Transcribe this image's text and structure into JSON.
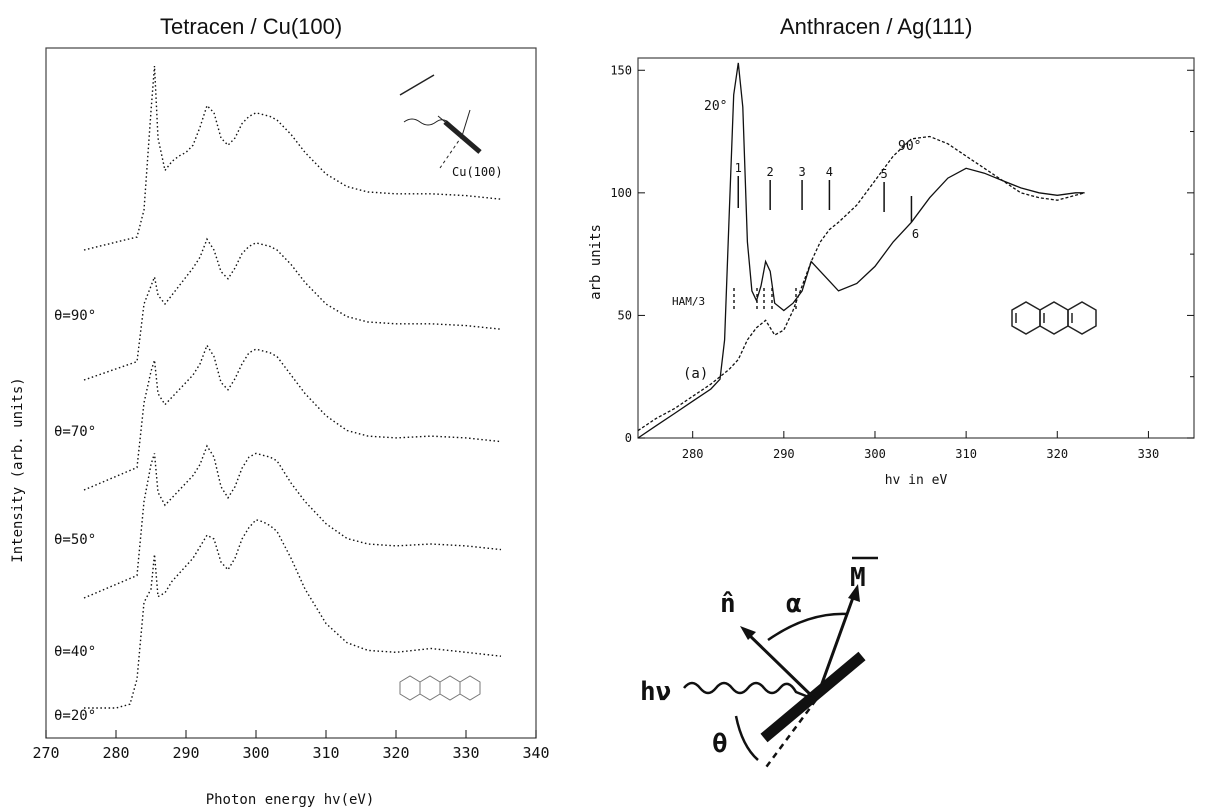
{
  "titles": {
    "left": "Tetracen / Cu(100)",
    "right": "Anthracen / Ag(111)"
  },
  "colors": {
    "ink": "#111111",
    "frame": "#444444"
  },
  "chart_data": [
    {
      "type": "line",
      "title": "Tetracen / Cu(100)",
      "xlabel": "Photon energy hv(eV)",
      "ylabel": "Intensity (arb. units)",
      "xlim": [
        270,
        340
      ],
      "xticks": [
        270,
        280,
        290,
        300,
        310,
        320,
        330,
        340
      ],
      "inset_label": "Cu(100)",
      "legend_placement": "curve labels at left",
      "grid": false,
      "series": [
        {
          "name": "θ=90°",
          "x": [
            283,
            284,
            285,
            285.5,
            286,
            287,
            288,
            289,
            290,
            291,
            292,
            293,
            294,
            295,
            296,
            297,
            298,
            299,
            300,
            301,
            302,
            303,
            305,
            307,
            310,
            313,
            316,
            320,
            325,
            330,
            335
          ],
          "y": [
            0.05,
            0.2,
            0.75,
            1.0,
            0.6,
            0.42,
            0.47,
            0.5,
            0.52,
            0.56,
            0.66,
            0.78,
            0.74,
            0.6,
            0.56,
            0.6,
            0.68,
            0.72,
            0.74,
            0.73,
            0.72,
            0.7,
            0.62,
            0.52,
            0.4,
            0.33,
            0.3,
            0.29,
            0.29,
            0.28,
            0.26
          ]
        },
        {
          "name": "θ=70°",
          "x": [
            283,
            284,
            285,
            285.5,
            286,
            287,
            288,
            289,
            290,
            291,
            292,
            293,
            294,
            295,
            296,
            297,
            298,
            299,
            300,
            301,
            302,
            303,
            305,
            307,
            310,
            313,
            316,
            320,
            325,
            330,
            335
          ],
          "y": [
            0.08,
            0.4,
            0.5,
            0.55,
            0.45,
            0.4,
            0.45,
            0.5,
            0.55,
            0.6,
            0.66,
            0.76,
            0.7,
            0.58,
            0.54,
            0.6,
            0.68,
            0.72,
            0.74,
            0.73,
            0.72,
            0.7,
            0.62,
            0.52,
            0.4,
            0.33,
            0.3,
            0.29,
            0.29,
            0.28,
            0.26
          ]
        },
        {
          "name": "θ=50°",
          "x": [
            283,
            284,
            285,
            285.5,
            286,
            287,
            288,
            289,
            290,
            291,
            292,
            293,
            294,
            295,
            296,
            297,
            298,
            299,
            300,
            301,
            302,
            303,
            305,
            307,
            310,
            313,
            316,
            320,
            325,
            330,
            335
          ],
          "y": [
            0.1,
            0.45,
            0.62,
            0.68,
            0.5,
            0.44,
            0.48,
            0.52,
            0.56,
            0.6,
            0.66,
            0.76,
            0.7,
            0.56,
            0.52,
            0.58,
            0.66,
            0.72,
            0.74,
            0.73,
            0.72,
            0.7,
            0.6,
            0.5,
            0.38,
            0.3,
            0.27,
            0.26,
            0.27,
            0.26,
            0.24
          ]
        },
        {
          "name": "θ=40°",
          "x": [
            283,
            284,
            285,
            285.5,
            286,
            287,
            288,
            289,
            290,
            291,
            292,
            293,
            294,
            295,
            296,
            297,
            298,
            299,
            300,
            301,
            302,
            303,
            305,
            307,
            310,
            313,
            316,
            320,
            325,
            330,
            335
          ],
          "y": [
            0.1,
            0.5,
            0.7,
            0.76,
            0.55,
            0.48,
            0.52,
            0.56,
            0.6,
            0.64,
            0.7,
            0.8,
            0.74,
            0.58,
            0.52,
            0.58,
            0.68,
            0.74,
            0.76,
            0.75,
            0.74,
            0.72,
            0.6,
            0.5,
            0.38,
            0.3,
            0.27,
            0.26,
            0.27,
            0.26,
            0.24
          ]
        },
        {
          "name": "θ=20°",
          "x": [
            280,
            282,
            283,
            284,
            285,
            285.5,
            286,
            287,
            288,
            289,
            290,
            291,
            292,
            293,
            294,
            295,
            296,
            297,
            298,
            299,
            300,
            301,
            302,
            303,
            305,
            307,
            310,
            313,
            316,
            320,
            325,
            330,
            335
          ],
          "y": [
            0.0,
            0.02,
            0.15,
            0.55,
            0.62,
            0.8,
            0.58,
            0.6,
            0.66,
            0.7,
            0.74,
            0.78,
            0.84,
            0.9,
            0.88,
            0.76,
            0.72,
            0.78,
            0.88,
            0.94,
            0.98,
            0.97,
            0.95,
            0.92,
            0.78,
            0.62,
            0.44,
            0.34,
            0.3,
            0.29,
            0.31,
            0.29,
            0.27
          ]
        }
      ]
    },
    {
      "type": "line",
      "title": "Anthracen / Ag(111)",
      "xlabel": "hv in eV",
      "ylabel": "arb units",
      "xlim": [
        274,
        335
      ],
      "ylim": [
        0,
        155
      ],
      "xticks": [
        280,
        290,
        300,
        310,
        320,
        330
      ],
      "yticks": [
        0,
        50,
        100,
        150
      ],
      "grid": false,
      "annotations": [
        "20°",
        "90°",
        "(a)",
        "HAM/3"
      ],
      "peak_markers": [
        {
          "label": "1",
          "x": 285
        },
        {
          "label": "2",
          "x": 288.5
        },
        {
          "label": "3",
          "x": 292
        },
        {
          "label": "4",
          "x": 295
        },
        {
          "label": "5",
          "x": 301
        },
        {
          "label": "6",
          "x": 304
        }
      ],
      "series": [
        {
          "name": "20°",
          "style": "solid",
          "x": [
            274,
            276,
            278,
            280,
            282,
            283,
            283.5,
            284,
            284.5,
            285,
            285.5,
            286,
            286.5,
            287,
            287.5,
            288,
            288.5,
            289,
            290,
            291,
            292,
            293,
            294,
            295,
            296,
            298,
            300,
            302,
            304,
            306,
            308,
            310,
            312,
            314,
            316,
            318,
            320,
            322,
            323
          ],
          "y": [
            0,
            5,
            10,
            15,
            20,
            24,
            40,
            90,
            140,
            153,
            135,
            80,
            60,
            56,
            62,
            72,
            68,
            55,
            52,
            55,
            60,
            72,
            68,
            64,
            60,
            63,
            70,
            80,
            88,
            98,
            106,
            110,
            108,
            105,
            102,
            100,
            99,
            100,
            100
          ]
        },
        {
          "name": "90°",
          "style": "dashed",
          "x": [
            274,
            276,
            278,
            280,
            282,
            284,
            285,
            286,
            287,
            288,
            289,
            290,
            291,
            292,
            293,
            294,
            295,
            296,
            298,
            300,
            302,
            304,
            306,
            308,
            310,
            312,
            314,
            316,
            318,
            320,
            322,
            323
          ],
          "y": [
            3,
            8,
            12,
            17,
            22,
            28,
            32,
            40,
            45,
            48,
            42,
            44,
            52,
            62,
            72,
            80,
            85,
            88,
            95,
            105,
            115,
            122,
            123,
            120,
            115,
            110,
            105,
            100,
            98,
            97,
            99,
            100
          ]
        }
      ]
    }
  ]
}
